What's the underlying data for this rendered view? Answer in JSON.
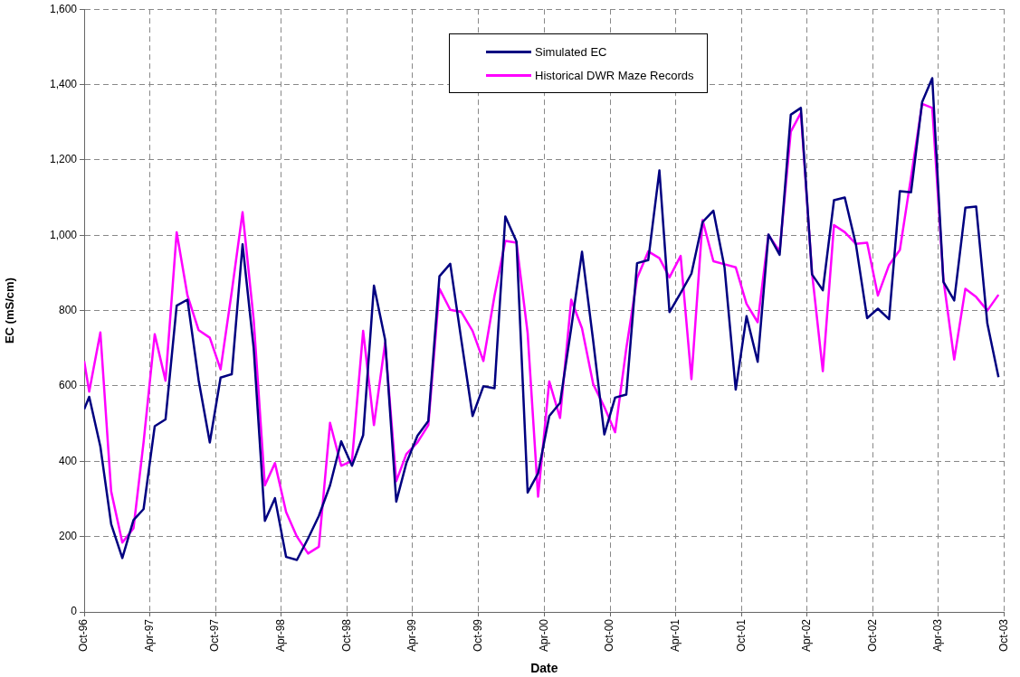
{
  "chart_data": {
    "type": "line",
    "xlabel": "Date",
    "ylabel": "EC (mS/cm)",
    "x": [
      "1996-10-01",
      "1996-10-15",
      "1996-11-15",
      "1996-12-15",
      "1997-01-15",
      "1997-02-15",
      "1997-03-15",
      "1997-04-15",
      "1997-05-15",
      "1997-06-15",
      "1997-07-15",
      "1997-08-15",
      "1997-09-15",
      "1997-10-15",
      "1997-11-15",
      "1997-12-15",
      "1998-01-15",
      "1998-02-15",
      "1998-03-15",
      "1998-04-15",
      "1998-05-15",
      "1998-06-15",
      "1998-07-15",
      "1998-08-15",
      "1998-09-15",
      "1998-10-15",
      "1998-11-15",
      "1998-12-15",
      "1999-01-15",
      "1999-02-15",
      "1999-03-15",
      "1999-04-15",
      "1999-05-15",
      "1999-06-15",
      "1999-07-15",
      "1999-08-15",
      "1999-09-15",
      "1999-10-15",
      "1999-11-15",
      "1999-12-15",
      "2000-01-15",
      "2000-02-15",
      "2000-03-15",
      "2000-04-15",
      "2000-05-15",
      "2000-06-15",
      "2000-07-15",
      "2000-08-15",
      "2000-09-15",
      "2000-10-15",
      "2000-11-15",
      "2000-12-15",
      "2001-01-15",
      "2001-02-15",
      "2001-03-15",
      "2001-04-15",
      "2001-05-15",
      "2001-06-15",
      "2001-07-15",
      "2001-08-15",
      "2001-09-15",
      "2001-10-15",
      "2001-11-15",
      "2001-12-15",
      "2002-01-15",
      "2002-02-15",
      "2002-03-15",
      "2002-04-15",
      "2002-05-15",
      "2002-06-15",
      "2002-07-15",
      "2002-08-15",
      "2002-09-15",
      "2002-10-15",
      "2002-11-15",
      "2002-12-15",
      "2003-01-15",
      "2003-02-15",
      "2003-03-15",
      "2003-04-15",
      "2003-05-15",
      "2003-06-15",
      "2003-07-15",
      "2003-08-15",
      "2003-09-15"
    ],
    "series": [
      {
        "name": "Simulated EC",
        "color": "#000080",
        "values": [
          538,
          571,
          439,
          233,
          143,
          244,
          273,
          493,
          511,
          813,
          829,
          615,
          450,
          622,
          631,
          976,
          699,
          242,
          302,
          146,
          138,
          195,
          255,
          336,
          453,
          388,
          469,
          866,
          723,
          293,
          395,
          468,
          507,
          891,
          924,
          720,
          520,
          599,
          594,
          1050,
          983,
          317,
          368,
          520,
          555,
          753,
          956,
          720,
          471,
          569,
          577,
          926,
          934,
          1172,
          796,
          847,
          898,
          1035,
          1065,
          914,
          590,
          785,
          664,
          1002,
          948,
          1320,
          1338,
          896,
          854,
          1093,
          1100,
          975,
          780,
          805,
          777,
          1117,
          1114,
          1354,
          1417,
          876,
          827,
          1073,
          1076,
          766,
          623
        ]
      },
      {
        "name": "Historical DWR Maze Records",
        "color": "#ff00ff",
        "values": [
          666,
          585,
          742,
          320,
          184,
          222,
          450,
          737,
          614,
          1008,
          840,
          748,
          728,
          644,
          850,
          1061,
          775,
          336,
          395,
          265,
          200,
          155,
          173,
          502,
          388,
          401,
          746,
          496,
          714,
          347,
          419,
          450,
          496,
          858,
          802,
          796,
          746,
          666,
          840,
          985,
          980,
          740,
          306,
          612,
          515,
          829,
          753,
          605,
          544,
          477,
          699,
          886,
          957,
          939,
          888,
          945,
          618,
          1040,
          931,
          923,
          915,
          818,
          769,
          1001,
          957,
          1275,
          1325,
          900,
          639,
          1027,
          1008,
          977,
          980,
          840,
          921,
          961,
          1154,
          1349,
          1338,
          883,
          670,
          858,
          836,
          800,
          842
        ]
      }
    ],
    "xlim": [
      "1996-10",
      "2003-10"
    ],
    "xticks": [
      {
        "value": "1996-10",
        "label": "Oct-96"
      },
      {
        "value": "1997-04",
        "label": "Apr-97"
      },
      {
        "value": "1997-10",
        "label": "Oct-97"
      },
      {
        "value": "1998-04",
        "label": "Apr-98"
      },
      {
        "value": "1998-10",
        "label": "Oct-98"
      },
      {
        "value": "1999-04",
        "label": "Apr-99"
      },
      {
        "value": "1999-10",
        "label": "Oct-99"
      },
      {
        "value": "2000-04",
        "label": "Apr-00"
      },
      {
        "value": "2000-10",
        "label": "Oct-00"
      },
      {
        "value": "2001-04",
        "label": "Apr-01"
      },
      {
        "value": "2001-10",
        "label": "Oct-01"
      },
      {
        "value": "2002-04",
        "label": "Apr-02"
      },
      {
        "value": "2002-10",
        "label": "Oct-02"
      },
      {
        "value": "2003-04",
        "label": "Apr-03"
      },
      {
        "value": "2003-10",
        "label": "Oct-03"
      }
    ],
    "ylim": [
      0,
      1600
    ],
    "yticks": [
      0,
      200,
      400,
      600,
      800,
      {
        "value": 1000,
        "label": "1,000"
      },
      {
        "value": 1200,
        "label": "1,200"
      },
      {
        "value": 1400,
        "label": "1,400"
      },
      {
        "value": 1600,
        "label": "1,600"
      }
    ],
    "grid": true,
    "legend": "top",
    "marker": "none",
    "line_style": "solid"
  }
}
